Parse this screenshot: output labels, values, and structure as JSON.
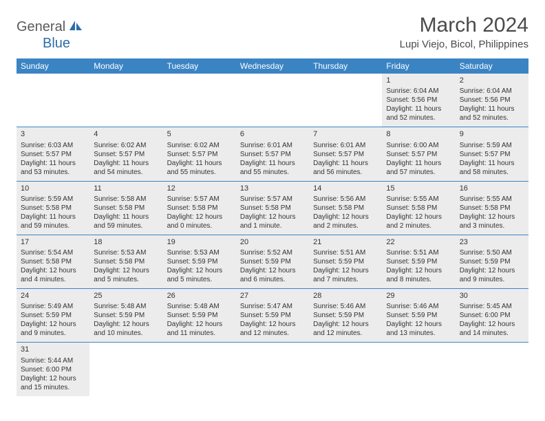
{
  "logo": {
    "text1": "General",
    "text2": "Blue"
  },
  "title": "March 2024",
  "location": "Lupi Viejo, Bicol, Philippines",
  "colors": {
    "header_bg": "#3b84c4",
    "header_text": "#ffffff",
    "shaded_bg": "#ececec",
    "border": "#3b84c4",
    "logo_gray": "#5a5a5a",
    "logo_blue": "#2e6ca8",
    "title_color": "#4a4a4a"
  },
  "day_names": [
    "Sunday",
    "Monday",
    "Tuesday",
    "Wednesday",
    "Thursday",
    "Friday",
    "Saturday"
  ],
  "weeks": [
    [
      {
        "empty": true
      },
      {
        "empty": true
      },
      {
        "empty": true
      },
      {
        "empty": true
      },
      {
        "empty": true
      },
      {
        "day": "1",
        "shaded": true,
        "sunrise": "Sunrise: 6:04 AM",
        "sunset": "Sunset: 5:56 PM",
        "daylight": "Daylight: 11 hours and 52 minutes."
      },
      {
        "day": "2",
        "shaded": true,
        "sunrise": "Sunrise: 6:04 AM",
        "sunset": "Sunset: 5:56 PM",
        "daylight": "Daylight: 11 hours and 52 minutes."
      }
    ],
    [
      {
        "day": "3",
        "shaded": true,
        "sunrise": "Sunrise: 6:03 AM",
        "sunset": "Sunset: 5:57 PM",
        "daylight": "Daylight: 11 hours and 53 minutes."
      },
      {
        "day": "4",
        "shaded": true,
        "sunrise": "Sunrise: 6:02 AM",
        "sunset": "Sunset: 5:57 PM",
        "daylight": "Daylight: 11 hours and 54 minutes."
      },
      {
        "day": "5",
        "shaded": true,
        "sunrise": "Sunrise: 6:02 AM",
        "sunset": "Sunset: 5:57 PM",
        "daylight": "Daylight: 11 hours and 55 minutes."
      },
      {
        "day": "6",
        "shaded": true,
        "sunrise": "Sunrise: 6:01 AM",
        "sunset": "Sunset: 5:57 PM",
        "daylight": "Daylight: 11 hours and 55 minutes."
      },
      {
        "day": "7",
        "shaded": true,
        "sunrise": "Sunrise: 6:01 AM",
        "sunset": "Sunset: 5:57 PM",
        "daylight": "Daylight: 11 hours and 56 minutes."
      },
      {
        "day": "8",
        "shaded": true,
        "sunrise": "Sunrise: 6:00 AM",
        "sunset": "Sunset: 5:57 PM",
        "daylight": "Daylight: 11 hours and 57 minutes."
      },
      {
        "day": "9",
        "shaded": true,
        "sunrise": "Sunrise: 5:59 AM",
        "sunset": "Sunset: 5:57 PM",
        "daylight": "Daylight: 11 hours and 58 minutes."
      }
    ],
    [
      {
        "day": "10",
        "shaded": true,
        "sunrise": "Sunrise: 5:59 AM",
        "sunset": "Sunset: 5:58 PM",
        "daylight": "Daylight: 11 hours and 59 minutes."
      },
      {
        "day": "11",
        "shaded": true,
        "sunrise": "Sunrise: 5:58 AM",
        "sunset": "Sunset: 5:58 PM",
        "daylight": "Daylight: 11 hours and 59 minutes."
      },
      {
        "day": "12",
        "shaded": true,
        "sunrise": "Sunrise: 5:57 AM",
        "sunset": "Sunset: 5:58 PM",
        "daylight": "Daylight: 12 hours and 0 minutes."
      },
      {
        "day": "13",
        "shaded": true,
        "sunrise": "Sunrise: 5:57 AM",
        "sunset": "Sunset: 5:58 PM",
        "daylight": "Daylight: 12 hours and 1 minute."
      },
      {
        "day": "14",
        "shaded": true,
        "sunrise": "Sunrise: 5:56 AM",
        "sunset": "Sunset: 5:58 PM",
        "daylight": "Daylight: 12 hours and 2 minutes."
      },
      {
        "day": "15",
        "shaded": true,
        "sunrise": "Sunrise: 5:55 AM",
        "sunset": "Sunset: 5:58 PM",
        "daylight": "Daylight: 12 hours and 2 minutes."
      },
      {
        "day": "16",
        "shaded": true,
        "sunrise": "Sunrise: 5:55 AM",
        "sunset": "Sunset: 5:58 PM",
        "daylight": "Daylight: 12 hours and 3 minutes."
      }
    ],
    [
      {
        "day": "17",
        "shaded": true,
        "sunrise": "Sunrise: 5:54 AM",
        "sunset": "Sunset: 5:58 PM",
        "daylight": "Daylight: 12 hours and 4 minutes."
      },
      {
        "day": "18",
        "shaded": true,
        "sunrise": "Sunrise: 5:53 AM",
        "sunset": "Sunset: 5:58 PM",
        "daylight": "Daylight: 12 hours and 5 minutes."
      },
      {
        "day": "19",
        "shaded": true,
        "sunrise": "Sunrise: 5:53 AM",
        "sunset": "Sunset: 5:59 PM",
        "daylight": "Daylight: 12 hours and 5 minutes."
      },
      {
        "day": "20",
        "shaded": true,
        "sunrise": "Sunrise: 5:52 AM",
        "sunset": "Sunset: 5:59 PM",
        "daylight": "Daylight: 12 hours and 6 minutes."
      },
      {
        "day": "21",
        "shaded": true,
        "sunrise": "Sunrise: 5:51 AM",
        "sunset": "Sunset: 5:59 PM",
        "daylight": "Daylight: 12 hours and 7 minutes."
      },
      {
        "day": "22",
        "shaded": true,
        "sunrise": "Sunrise: 5:51 AM",
        "sunset": "Sunset: 5:59 PM",
        "daylight": "Daylight: 12 hours and 8 minutes."
      },
      {
        "day": "23",
        "shaded": true,
        "sunrise": "Sunrise: 5:50 AM",
        "sunset": "Sunset: 5:59 PM",
        "daylight": "Daylight: 12 hours and 9 minutes."
      }
    ],
    [
      {
        "day": "24",
        "shaded": true,
        "sunrise": "Sunrise: 5:49 AM",
        "sunset": "Sunset: 5:59 PM",
        "daylight": "Daylight: 12 hours and 9 minutes."
      },
      {
        "day": "25",
        "shaded": true,
        "sunrise": "Sunrise: 5:48 AM",
        "sunset": "Sunset: 5:59 PM",
        "daylight": "Daylight: 12 hours and 10 minutes."
      },
      {
        "day": "26",
        "shaded": true,
        "sunrise": "Sunrise: 5:48 AM",
        "sunset": "Sunset: 5:59 PM",
        "daylight": "Daylight: 12 hours and 11 minutes."
      },
      {
        "day": "27",
        "shaded": true,
        "sunrise": "Sunrise: 5:47 AM",
        "sunset": "Sunset: 5:59 PM",
        "daylight": "Daylight: 12 hours and 12 minutes."
      },
      {
        "day": "28",
        "shaded": true,
        "sunrise": "Sunrise: 5:46 AM",
        "sunset": "Sunset: 5:59 PM",
        "daylight": "Daylight: 12 hours and 12 minutes."
      },
      {
        "day": "29",
        "shaded": true,
        "sunrise": "Sunrise: 5:46 AM",
        "sunset": "Sunset: 5:59 PM",
        "daylight": "Daylight: 12 hours and 13 minutes."
      },
      {
        "day": "30",
        "shaded": true,
        "sunrise": "Sunrise: 5:45 AM",
        "sunset": "Sunset: 6:00 PM",
        "daylight": "Daylight: 12 hours and 14 minutes."
      }
    ],
    [
      {
        "day": "31",
        "shaded": true,
        "sunrise": "Sunrise: 5:44 AM",
        "sunset": "Sunset: 6:00 PM",
        "daylight": "Daylight: 12 hours and 15 minutes."
      },
      {
        "empty": true,
        "noborder": true
      },
      {
        "empty": true,
        "noborder": true
      },
      {
        "empty": true,
        "noborder": true
      },
      {
        "empty": true,
        "noborder": true
      },
      {
        "empty": true,
        "noborder": true
      },
      {
        "empty": true,
        "noborder": true
      }
    ]
  ]
}
